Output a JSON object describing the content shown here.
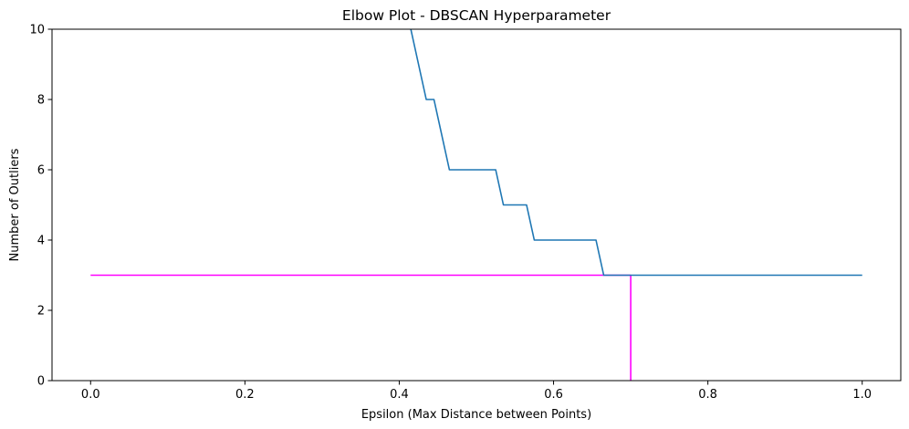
{
  "chart_data": {
    "type": "line",
    "title": "Elbow Plot - DBSCAN Hyperparameter",
    "xlabel": "Epsilon (Max Distance between Points)",
    "ylabel": "Number of Outliers",
    "xlim": [
      -0.05,
      1.05
    ],
    "ylim": [
      0,
      10
    ],
    "xticks": [
      0.0,
      0.2,
      0.4,
      0.6,
      0.8,
      1.0
    ],
    "xtick_labels": [
      "0.0",
      "0.2",
      "0.4",
      "0.6",
      "0.8",
      "1.0"
    ],
    "yticks": [
      0,
      2,
      4,
      6,
      8,
      10
    ],
    "ytick_labels": [
      "0",
      "2",
      "4",
      "6",
      "8",
      "10"
    ],
    "grid": false,
    "series": [
      {
        "color": "#1f77b4",
        "x": [
          0.41,
          0.415,
          0.435,
          0.445,
          0.465,
          0.525,
          0.535,
          0.565,
          0.575,
          0.655,
          0.665,
          1.0
        ],
        "y": [
          10.5,
          10,
          8,
          8,
          6,
          6,
          5,
          5,
          4,
          4,
          3,
          3
        ]
      }
    ],
    "reference_lines": [
      {
        "orientation": "horizontal",
        "y": 3,
        "x_range": [
          0.0,
          0.7
        ],
        "color": "#ff00ff"
      },
      {
        "orientation": "vertical",
        "x": 0.7,
        "y_range": [
          0,
          3
        ],
        "color": "#ff00ff"
      }
    ]
  }
}
